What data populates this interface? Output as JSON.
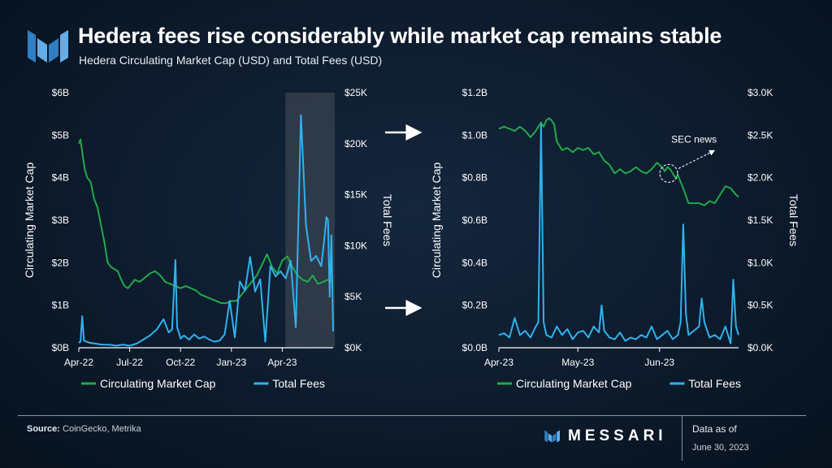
{
  "header": {
    "title": "Hedera fees rise considerably while market cap remains stable",
    "subtitle": "Hedera Circulating Market Cap (USD) and Total Fees (USD)"
  },
  "colors": {
    "market_cap": "#22a94a",
    "fees": "#2fb2ee",
    "highlight": "#3a4350"
  },
  "footer": {
    "source_label": "Source:",
    "source_text": " CoinGecko, Metrika",
    "brand": "MESSARI",
    "as_of_label": "Data as of",
    "as_of_date": "June 30, 2023"
  },
  "chart_data": [
    {
      "type": "line",
      "id": "left",
      "x_ticks": [
        "Apr-22",
        "Jul-22",
        "Oct-22",
        "Jan-23",
        "Apr-23"
      ],
      "xlim": [
        0,
        15
      ],
      "x_tick_pos": [
        0,
        3,
        6,
        9,
        12
      ],
      "ylabel_left": "Circulating Market Cap",
      "ylabel_right": "Total Fees",
      "left_ticks": [
        "$0B",
        "$1B",
        "$2B",
        "$3B",
        "$4B",
        "$5B",
        "$6B"
      ],
      "left_ylim": [
        0,
        6
      ],
      "right_ticks": [
        "$0K",
        "$5K",
        "$10K",
        "$15K",
        "$20K",
        "$25K"
      ],
      "right_ylim": [
        0,
        25
      ],
      "highlight_range": [
        12,
        15
      ],
      "legend": [
        "Circulating Market Cap",
        "Total Fees"
      ],
      "series": [
        {
          "name": "Circulating Market Cap",
          "axis": "left",
          "x": [
            0,
            0.1,
            0.2,
            0.35,
            0.5,
            0.7,
            0.9,
            1.1,
            1.3,
            1.5,
            1.7,
            1.9,
            2.1,
            2.3,
            2.5,
            2.7,
            2.9,
            3.1,
            3.3,
            3.6,
            3.9,
            4.2,
            4.5,
            4.8,
            5.1,
            5.4,
            5.7,
            6.0,
            6.3,
            6.6,
            6.9,
            7.2,
            7.5,
            7.8,
            8.1,
            8.4,
            8.7,
            9.0,
            9.3,
            9.6,
            9.9,
            10.2,
            10.5,
            10.8,
            11.1,
            11.4,
            11.7,
            12.0,
            12.3,
            12.6,
            12.9,
            13.2,
            13.5,
            13.8,
            14.1,
            14.4,
            14.7,
            15.0
          ],
          "y": [
            4.8,
            4.9,
            4.6,
            4.2,
            4.0,
            3.9,
            3.5,
            3.3,
            2.9,
            2.5,
            2.0,
            1.9,
            1.85,
            1.8,
            1.6,
            1.45,
            1.4,
            1.5,
            1.6,
            1.55,
            1.65,
            1.75,
            1.8,
            1.7,
            1.55,
            1.5,
            1.45,
            1.4,
            1.45,
            1.4,
            1.35,
            1.25,
            1.2,
            1.15,
            1.1,
            1.05,
            1.05,
            1.1,
            1.1,
            1.25,
            1.4,
            1.55,
            1.7,
            1.95,
            2.2,
            1.9,
            1.75,
            2.05,
            2.15,
            1.9,
            1.7,
            1.6,
            1.55,
            1.7,
            1.5,
            1.55,
            1.6,
            1.55
          ]
        },
        {
          "name": "Total Fees",
          "axis": "right",
          "x": [
            0,
            0.1,
            0.2,
            0.3,
            0.6,
            1.0,
            1.4,
            1.8,
            2.2,
            2.6,
            3.0,
            3.4,
            3.8,
            4.2,
            4.6,
            5.0,
            5.3,
            5.5,
            5.7,
            5.8,
            5.9,
            6.0,
            6.2,
            6.5,
            6.8,
            7.1,
            7.4,
            7.7,
            8.0,
            8.3,
            8.6,
            8.9,
            9.2,
            9.5,
            9.8,
            10.1,
            10.4,
            10.7,
            11.0,
            11.3,
            11.6,
            11.9,
            12.2,
            12.5,
            12.8,
            13.1,
            13.4,
            13.7,
            14.0,
            14.3,
            14.5,
            14.6,
            14.7,
            14.8,
            14.9,
            15.0
          ],
          "y": [
            0.5,
            0.6,
            3.1,
            0.7,
            0.5,
            0.4,
            0.3,
            0.3,
            0.2,
            0.3,
            0.2,
            0.4,
            0.8,
            1.2,
            1.8,
            2.8,
            1.5,
            1.8,
            8.6,
            2.0,
            1.5,
            0.9,
            1.2,
            0.8,
            1.3,
            0.9,
            1.1,
            0.8,
            0.6,
            0.7,
            1.3,
            4.6,
            1.0,
            6.5,
            5.6,
            8.9,
            5.5,
            6.7,
            0.6,
            8.0,
            7.0,
            7.5,
            6.8,
            8.5,
            2.0,
            22.8,
            12.0,
            8.5,
            9.0,
            8.0,
            11.0,
            12.8,
            12.5,
            5.0,
            11.0,
            1.6
          ]
        }
      ]
    },
    {
      "type": "line",
      "id": "right",
      "x_ticks": [
        "Apr-23",
        "May-23",
        "Jun-23"
      ],
      "xlim": [
        0,
        91
      ],
      "x_tick_pos": [
        0,
        30,
        61
      ],
      "ylabel_left": "Circulating Market Cap",
      "ylabel_right": "Total Fees",
      "left_ticks": [
        "$0.0B",
        "$0.2B",
        "$0.4B",
        "$0.6B",
        "$0.8B",
        "$1.0B",
        "$1.2B"
      ],
      "left_ylim": [
        0,
        1.2
      ],
      "right_ticks": [
        "$0.0K",
        "$0.5K",
        "$1.0K",
        "$1.5K",
        "$2.0K",
        "$2.5K",
        "$3.0K"
      ],
      "right_ylim": [
        0,
        3.0
      ],
      "annotation": {
        "text": "SEC news",
        "x": 64.5,
        "y": 0.82
      },
      "legend": [
        "Circulating Market Cap",
        "Total Fees"
      ],
      "series": [
        {
          "name": "Circulating Market Cap",
          "axis": "left",
          "x": [
            0,
            2,
            4,
            6,
            8,
            10,
            12,
            14,
            16,
            17,
            18,
            19,
            20,
            21,
            22,
            24,
            26,
            28,
            30,
            32,
            34,
            36,
            38,
            40,
            42,
            44,
            46,
            48,
            50,
            52,
            54,
            56,
            58,
            60,
            62,
            63,
            64,
            65,
            66,
            67,
            68,
            70,
            72,
            74,
            76,
            78,
            80,
            82,
            84,
            86,
            88,
            90,
            91
          ],
          "y": [
            1.03,
            1.04,
            1.03,
            1.02,
            1.04,
            1.02,
            0.99,
            1.02,
            1.06,
            1.04,
            1.07,
            1.08,
            1.07,
            1.05,
            0.97,
            0.93,
            0.94,
            0.92,
            0.94,
            0.93,
            0.94,
            0.91,
            0.92,
            0.88,
            0.86,
            0.82,
            0.84,
            0.82,
            0.83,
            0.85,
            0.83,
            0.82,
            0.84,
            0.87,
            0.85,
            0.83,
            0.85,
            0.84,
            0.82,
            0.8,
            0.81,
            0.75,
            0.68,
            0.68,
            0.68,
            0.67,
            0.69,
            0.68,
            0.72,
            0.76,
            0.75,
            0.72,
            0.71
          ]
        },
        {
          "name": "Total Fees",
          "axis": "right",
          "x": [
            0,
            2,
            4,
            6,
            8,
            10,
            12,
            14,
            15,
            16,
            17,
            18,
            20,
            22,
            24,
            26,
            28,
            30,
            32,
            34,
            36,
            38,
            39,
            40,
            42,
            44,
            46,
            48,
            50,
            52,
            54,
            56,
            58,
            60,
            62,
            64,
            66,
            68,
            69,
            70,
            71,
            72,
            74,
            76,
            77,
            78,
            80,
            82,
            84,
            86,
            88,
            89,
            90,
            91
          ],
          "y": [
            0.15,
            0.17,
            0.12,
            0.35,
            0.15,
            0.2,
            0.12,
            0.25,
            0.3,
            2.62,
            0.3,
            0.15,
            0.12,
            0.25,
            0.15,
            0.22,
            0.1,
            0.18,
            0.2,
            0.12,
            0.25,
            0.18,
            0.5,
            0.2,
            0.12,
            0.1,
            0.18,
            0.08,
            0.12,
            0.1,
            0.15,
            0.12,
            0.25,
            0.1,
            0.15,
            0.2,
            0.1,
            0.15,
            0.3,
            1.45,
            0.4,
            0.15,
            0.2,
            0.25,
            0.58,
            0.3,
            0.12,
            0.15,
            0.1,
            0.25,
            0.05,
            0.8,
            0.25,
            0.15
          ]
        }
      ]
    }
  ]
}
